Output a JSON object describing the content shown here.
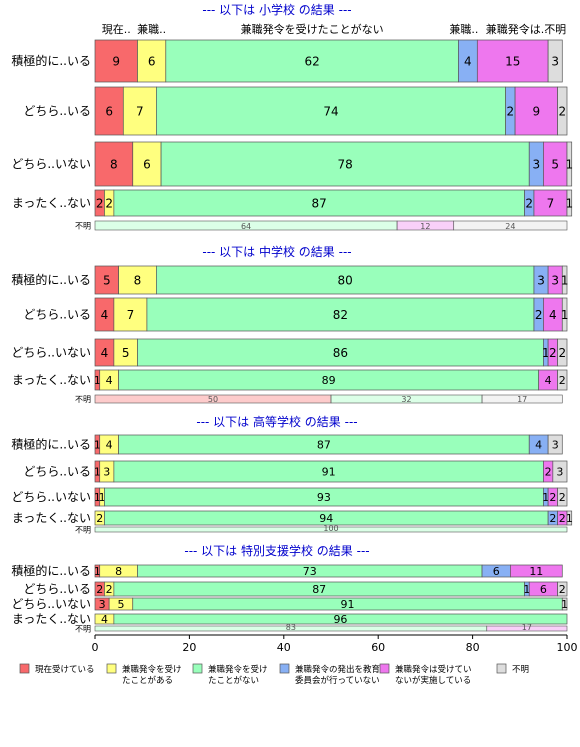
{
  "colors": {
    "currently": "#F8696B",
    "past": "#FFFF7F",
    "never": "#99FFBB",
    "board_not": "#88B0F4",
    "received_not_done": "#EE77EE",
    "unknown": "#DDDDDD",
    "title": "#0000CC"
  },
  "chart_data": {
    "type": "bar",
    "orientation": "horizontal-stacked-100",
    "xlim": [
      0,
      100
    ],
    "xticks": [
      "0",
      "20",
      "40",
      "60",
      "80",
      "100"
    ],
    "category_labels": [
      "積極的に..いる",
      "どちら..いる",
      "どちら..いない",
      "まったく..ない"
    ],
    "unknown_label": "不明",
    "series_keys": [
      "currently",
      "past",
      "never",
      "board_not",
      "received_not_done",
      "unknown"
    ],
    "legend": [
      {
        "key": "currently",
        "lines": [
          "現在受けている"
        ]
      },
      {
        "key": "past",
        "lines": [
          "兼職発令を受け",
          "たことがある"
        ]
      },
      {
        "key": "never",
        "lines": [
          "兼職発令を受け",
          "たことがない"
        ]
      },
      {
        "key": "board_not",
        "lines": [
          "兼職発令の発出を教育",
          "委員会が行っていない"
        ]
      },
      {
        "key": "received_not_done",
        "lines": [
          "兼職発令は受けてい",
          "ないが実施している"
        ]
      },
      {
        "key": "unknown",
        "lines": [
          "不明"
        ]
      }
    ],
    "panels": [
      {
        "title": "--- 以下は 小学校 の結果 ---",
        "headers": [
          "現在..",
          "兼職..",
          "兼職発令を受けたことがない",
          "兼職..",
          "兼職発令は..",
          "不明"
        ],
        "rows": [
          [
            9,
            6,
            62,
            4,
            15,
            3
          ],
          [
            6,
            7,
            74,
            2,
            9,
            2
          ],
          [
            8,
            6,
            78,
            3,
            5,
            1
          ],
          [
            2,
            2,
            87,
            2,
            7,
            1
          ]
        ],
        "unknown_row": [
          64,
          12,
          24
        ],
        "unknown_colors": [
          "never",
          "received_not_done",
          "unknown"
        ]
      },
      {
        "title": "--- 以下は 中学校 の結果 ---",
        "rows": [
          [
            5,
            8,
            80,
            3,
            3,
            1
          ],
          [
            4,
            7,
            82,
            2,
            4,
            1
          ],
          [
            4,
            5,
            86,
            1,
            2,
            2
          ],
          [
            1,
            4,
            89,
            0,
            4,
            2
          ]
        ],
        "unknown_row": [
          50,
          32,
          17
        ],
        "unknown_colors": [
          "currently",
          "never",
          "unknown"
        ]
      },
      {
        "title": "--- 以下は 高等学校 の結果 ---",
        "rows": [
          [
            1,
            4,
            87,
            4,
            0,
            3
          ],
          [
            1,
            3,
            91,
            0,
            2,
            3
          ],
          [
            1,
            1,
            93,
            1,
            2,
            2
          ],
          [
            0,
            2,
            94,
            2,
            2,
            1
          ]
        ],
        "unknown_row": [
          100
        ],
        "unknown_colors": [
          "never"
        ]
      },
      {
        "title": "--- 以下は 特別支援学校 の結果 ---",
        "rows": [
          [
            1,
            8,
            73,
            6,
            11,
            0
          ],
          [
            2,
            2,
            87,
            1,
            6,
            2
          ],
          [
            3,
            5,
            91,
            0,
            0,
            1
          ],
          [
            0,
            4,
            96,
            0,
            0,
            0
          ]
        ],
        "unknown_row": [
          83,
          17
        ],
        "unknown_colors": [
          "never",
          "received_not_done"
        ]
      }
    ]
  }
}
